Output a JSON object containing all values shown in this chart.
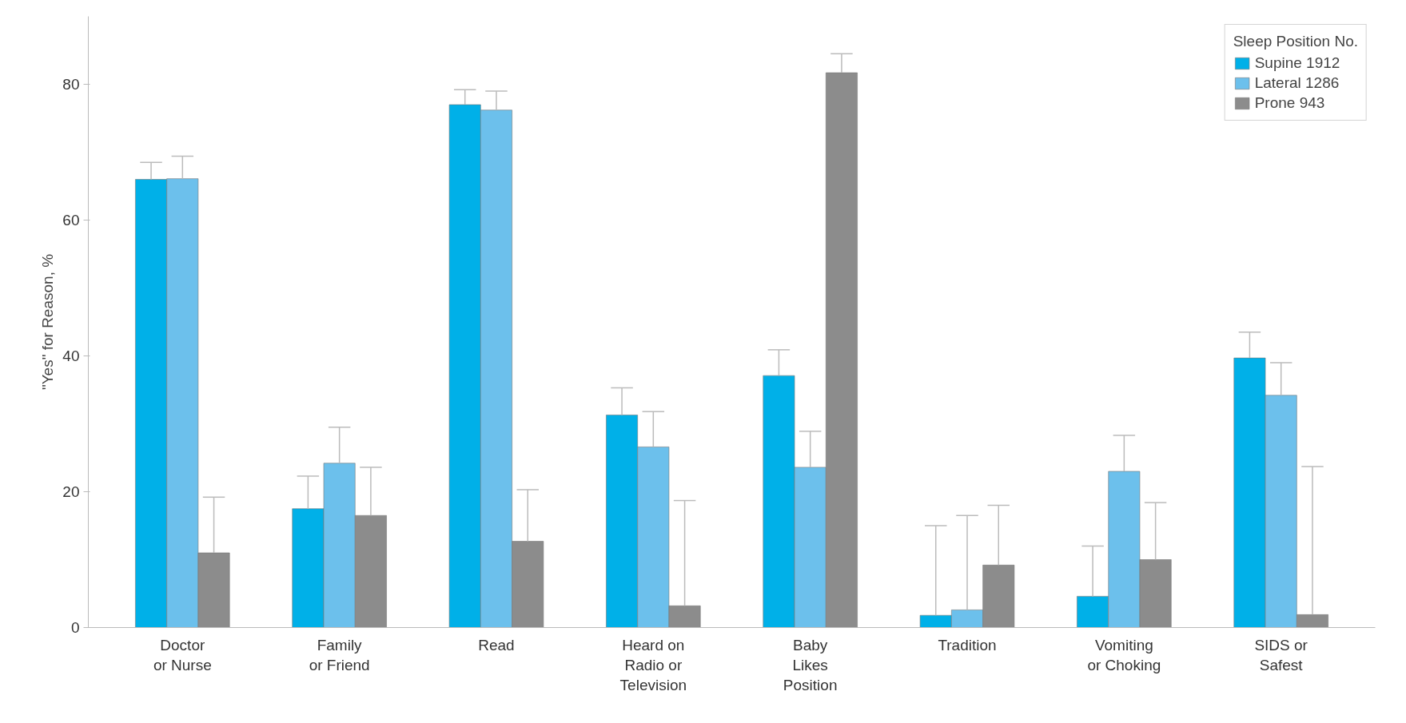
{
  "chart_data": {
    "type": "bar",
    "ylabel": "\"Yes\" for Reason, %",
    "legend_title": "Sleep Position No.",
    "categories": [
      "Doctor\nor Nurse",
      "Family\nor Friend",
      "Read",
      "Heard on\nRadio or\nTelevision",
      "Baby\nLikes\nPosition",
      "Tradition",
      "Vomiting\nor Choking",
      "SIDS or\nSafest"
    ],
    "series": [
      {
        "name": "Supine 1912",
        "color": "#00b0e8",
        "values": [
          66,
          17.5,
          77,
          31.3,
          37.1,
          1.8,
          4.6,
          39.7
        ],
        "errors": [
          [
            66,
            68.5
          ],
          [
            17.5,
            22.3
          ],
          [
            77,
            79.2
          ],
          [
            31.3,
            35.3
          ],
          [
            37.1,
            40.9
          ],
          [
            1.8,
            15
          ],
          [
            4.6,
            12
          ],
          [
            39.7,
            43.5
          ]
        ]
      },
      {
        "name": "Lateral 1286",
        "color": "#6cc0ec",
        "values": [
          66.1,
          24.2,
          76.2,
          26.6,
          23.6,
          2.6,
          23,
          34.2
        ],
        "errors": [
          [
            66.1,
            69.4
          ],
          [
            24.2,
            29.5
          ],
          [
            76.2,
            79
          ],
          [
            26.6,
            31.8
          ],
          [
            23.6,
            28.9
          ],
          [
            2.6,
            16.5
          ],
          [
            23,
            28.3
          ],
          [
            34.2,
            39
          ]
        ]
      },
      {
        "name": "Prone 943",
        "color": "#8c8c8c",
        "values": [
          11,
          16.5,
          12.7,
          3.2,
          81.7,
          9.2,
          10,
          1.9
        ],
        "errors": [
          [
            11,
            19.2
          ],
          [
            16.5,
            23.6
          ],
          [
            12.7,
            20.3
          ],
          [
            3.2,
            18.7
          ],
          [
            81.7,
            84.5
          ],
          [
            9.2,
            18
          ],
          [
            10,
            18.4
          ],
          [
            1.9,
            23.7
          ]
        ]
      }
    ],
    "ylim": [
      0,
      90
    ],
    "yticks": [
      0,
      20,
      40,
      60,
      80
    ],
    "grid": false,
    "legend": "top right"
  }
}
